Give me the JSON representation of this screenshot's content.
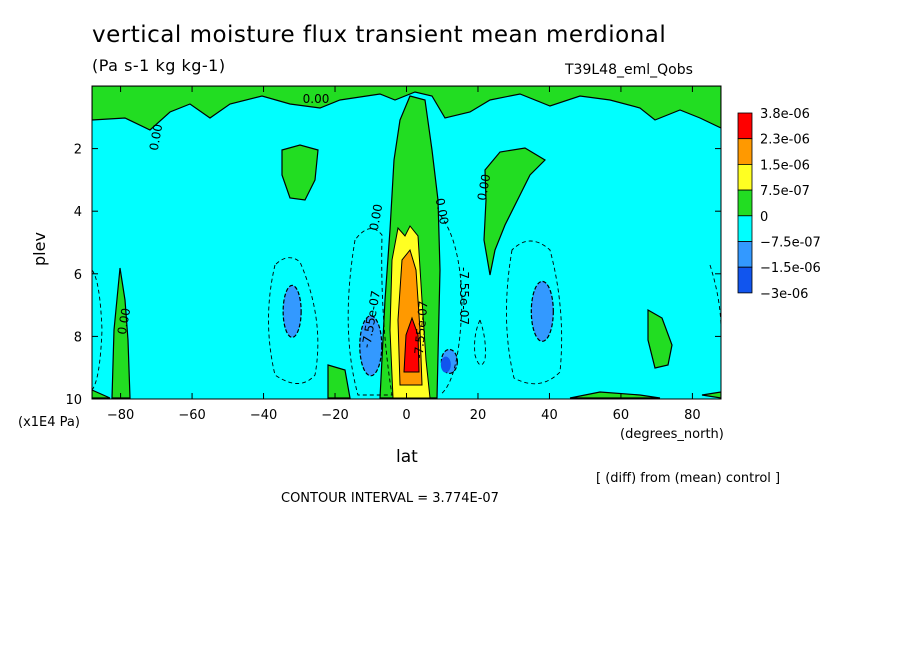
{
  "header": {
    "title": "vertical moisture flux transient mean merdional",
    "units": "(Pa s-1 kg kg-1)",
    "run": "T39L48_eml_Qobs"
  },
  "footer": {
    "note": "[ (diff) from (mean) control ]",
    "interval": "CONTOUR INTERVAL = 3.774E-07"
  },
  "colors": {
    "cyan": "#00ffff",
    "green": "#22dd22",
    "yellow": "#ffff22",
    "orange": "#ff9900",
    "red": "#ff0000",
    "lightblue": "#3399ff",
    "blue": "#1155ee"
  },
  "chart_data": {
    "type": "heatmap",
    "xlabel": "lat",
    "xunits": "(degrees_north)",
    "ylabel": "plev",
    "yunits": "(x1E4 Pa)",
    "xlim": [
      -88,
      88
    ],
    "ylim": [
      10,
      0
    ],
    "xticks": [
      -80,
      -60,
      -40,
      -20,
      0,
      20,
      40,
      60,
      80
    ],
    "yticks": [
      2,
      4,
      6,
      8,
      10
    ],
    "contour_interval": 3.774e-07,
    "legend": {
      "labels": [
        "3.8e-06",
        "2.3e-06",
        "1.5e-06",
        "7.5e-07",
        "0",
        "-7.5e-07",
        "-1.5e-06",
        "-3e-06"
      ],
      "colors": [
        "#ff0000",
        "#ff3300",
        "#ff9900",
        "#ffff22",
        "#22dd22",
        "#00ffff",
        "#3399ff",
        "#1155ee"
      ]
    },
    "contour_labels": [
      "0.00",
      "0.00",
      "0.00",
      "0.00",
      "0.00",
      "0.00",
      "-7.55e-07",
      "-7.55e-07",
      "-7.55e-07"
    ]
  }
}
